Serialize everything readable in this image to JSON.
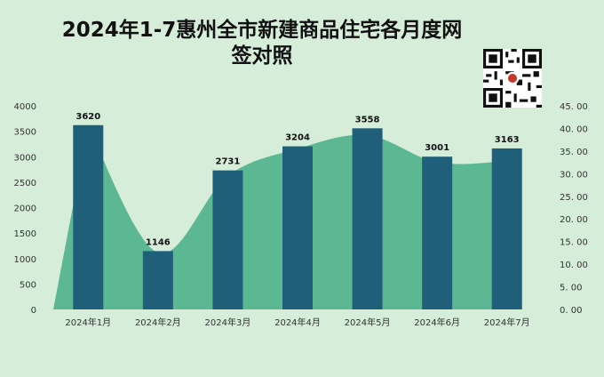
{
  "chart_data": {
    "type": "bar",
    "title": "2024年1-7惠州全市新建商品住宅各月度网签对照",
    "categories": [
      "2024年1月",
      "2024年2月",
      "2024年3月",
      "2024年4月",
      "2024年5月",
      "2024年6月",
      "2024年7月"
    ],
    "series": [
      {
        "values": [
          3620,
          1146,
          2731,
          3204,
          3558,
          3001,
          3163
        ],
        "color": "#1f5f7a",
        "kind": "bar",
        "axis": "left"
      },
      {
        "values": [
          40.5,
          12.5,
          29.5,
          35.5,
          38.5,
          32.5,
          32.8
        ],
        "color": "#5cb893",
        "kind": "area",
        "axis": "right"
      }
    ],
    "ylim_left": [
      0,
      4000
    ],
    "yticks_left": [
      "0",
      "500",
      "1000",
      "1500",
      "2000",
      "2500",
      "3000",
      "3500",
      "4000"
    ],
    "ylim_right": [
      0,
      45
    ],
    "yticks_right": [
      "0. 00",
      "5. 00",
      "10. 00",
      "15. 00",
      "20. 00",
      "25. 00",
      "30. 00",
      "35. 00",
      "40. 00",
      "45. 00"
    ],
    "grid": false,
    "legend": "none"
  },
  "qr_icon": "qr-code-icon"
}
